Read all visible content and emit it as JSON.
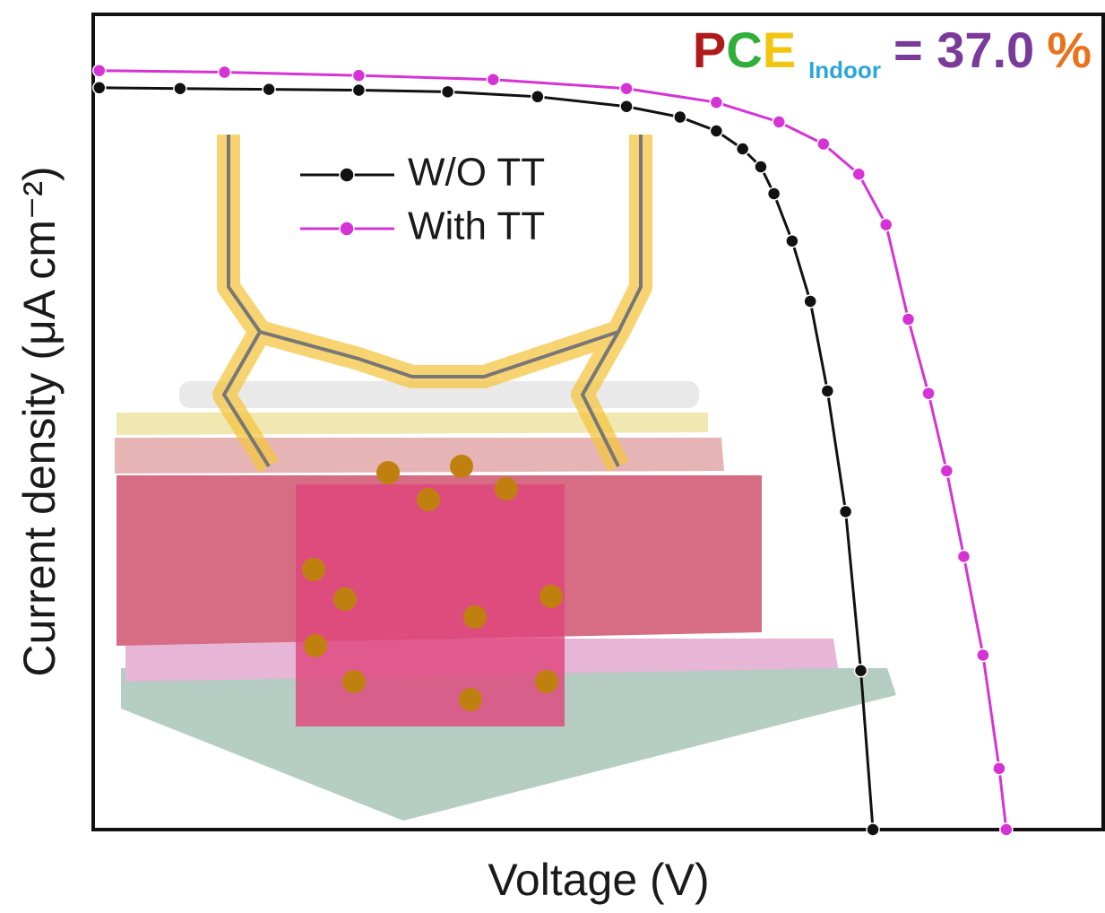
{
  "chart_data": {
    "type": "line",
    "x_label": "Voltage (V)",
    "y_label": "Current density (μA cm⁻²)",
    "annotation": [
      "P",
      "C",
      "E",
      "Indoor",
      "= 37.0",
      "%"
    ],
    "annotation_colors": [
      "#b01a1a",
      "#2fae3a",
      "#f2c511",
      "#2aa7d9",
      "#7a3a9a",
      "#e8731c"
    ],
    "xlim": [
      0,
      1
    ],
    "ylim": [
      0,
      1
    ],
    "legend": "upper left",
    "series": [
      {
        "name": "W/O TT",
        "color": "#111111",
        "x": [
          0.006,
          0.086,
          0.174,
          0.263,
          0.351,
          0.44,
          0.528,
          0.581,
          0.617,
          0.643,
          0.661,
          0.674,
          0.692,
          0.71,
          0.727,
          0.745,
          0.76,
          0.772
        ],
        "values": [
          0.91,
          0.909,
          0.908,
          0.907,
          0.905,
          0.899,
          0.887,
          0.874,
          0.857,
          0.835,
          0.813,
          0.78,
          0.722,
          0.648,
          0.538,
          0.39,
          0.195,
          0
        ]
      },
      {
        "name": "With TT",
        "color": "#d633d6",
        "x": [
          0.006,
          0.13,
          0.263,
          0.396,
          0.528,
          0.617,
          0.679,
          0.723,
          0.758,
          0.785,
          0.807,
          0.827,
          0.845,
          0.862,
          0.881,
          0.897,
          0.904
        ],
        "values": [
          0.931,
          0.929,
          0.925,
          0.92,
          0.909,
          0.892,
          0.868,
          0.841,
          0.804,
          0.742,
          0.626,
          0.535,
          0.44,
          0.335,
          0.214,
          0.075,
          0
        ]
      }
    ]
  }
}
